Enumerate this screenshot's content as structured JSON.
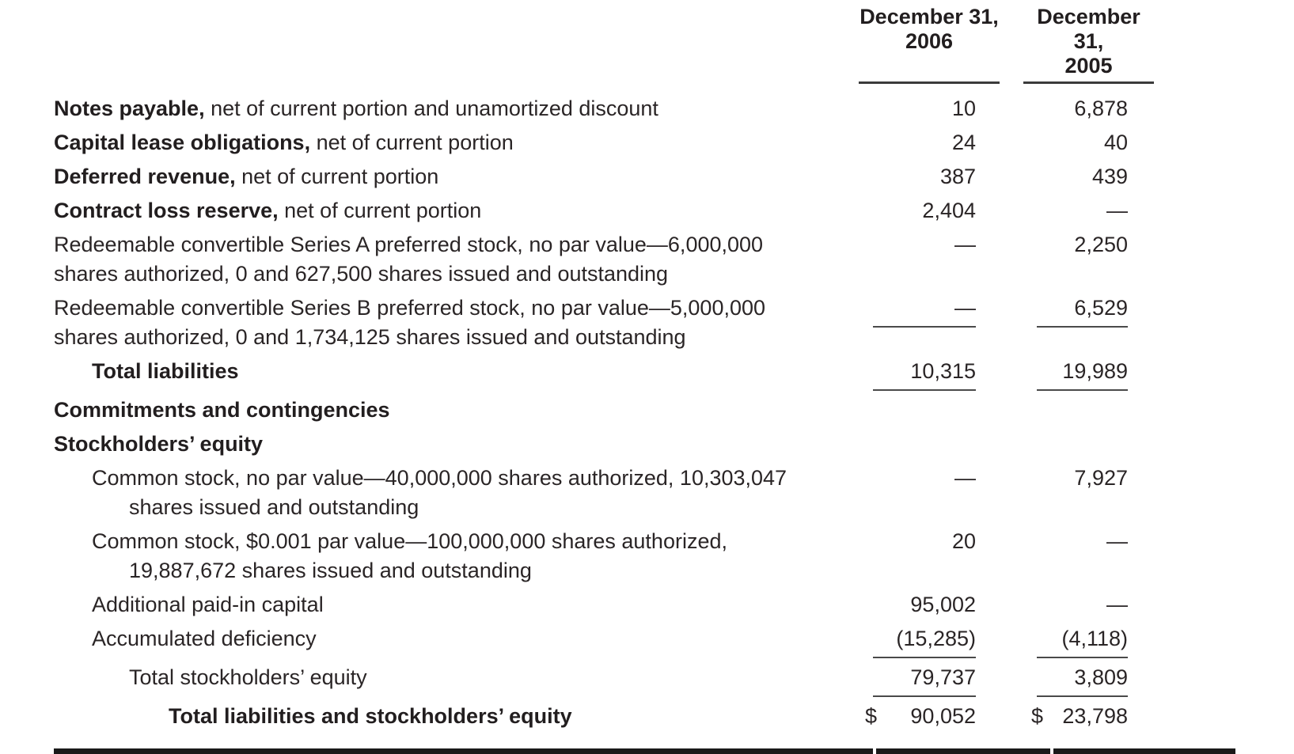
{
  "table": {
    "col_headers": [
      {
        "line1": "December 31,",
        "line2": "2006"
      },
      {
        "line1": "December 31,",
        "line2": "2005"
      }
    ],
    "rows": [
      {
        "bold_prefix": "Notes payable,",
        "text": " net of current portion and unamortized discount",
        "indent": 0,
        "v1": "10",
        "v2": "6,878"
      },
      {
        "bold_prefix": "Capital lease obligations,",
        "text": " net of current portion",
        "indent": 0,
        "v1": "24",
        "v2": "40"
      },
      {
        "bold_prefix": "Deferred revenue,",
        "text": " net of current portion",
        "indent": 0,
        "v1": "387",
        "v2": "439"
      },
      {
        "bold_prefix": "Contract loss reserve,",
        "text": " net of current portion",
        "indent": 0,
        "v1": "2,404",
        "v2": "—"
      },
      {
        "text": "Redeemable convertible Series A preferred stock, no par value—6,000,000",
        "text2": "shares authorized, 0 and 627,500 shares issued and outstanding",
        "indent": 0,
        "indent2": 0,
        "v1": "—",
        "v2": "2,250"
      },
      {
        "text": "Redeemable convertible Series B preferred stock, no par value—5,000,000",
        "text2": "shares authorized, 0 and 1,734,125 shares issued and outstanding",
        "indent": 0,
        "indent2": 0,
        "v1": "—",
        "v2": "6,529",
        "rule": true
      },
      {
        "text": "Total liabilities",
        "bold": true,
        "indent": 1,
        "v1": "10,315",
        "v2": "19,989",
        "rule": true
      },
      {
        "text": "Commitments and contingencies",
        "bold": true,
        "indent": 0
      },
      {
        "text": "Stockholders’ equity",
        "bold": true,
        "indent": 0
      },
      {
        "text": "Common stock, no par value—40,000,000 shares authorized, 10,303,047",
        "text2": "shares issued and outstanding",
        "indent": 1,
        "indent2": 2,
        "v1": "—",
        "v2": "7,927"
      },
      {
        "text": "Common stock, $0.001 par value—100,000,000 shares authorized,",
        "text2": "19,887,672 shares issued and outstanding",
        "indent": 1,
        "indent2": 2,
        "v1": "20",
        "v2": "—"
      },
      {
        "text": "Additional paid-in capital",
        "indent": 1,
        "v1": "95,002",
        "v2": "—"
      },
      {
        "text": "Accumulated deficiency",
        "indent": 1,
        "v1": "(15,285)",
        "v2": "(4,118)",
        "rule": true
      },
      {
        "text": "Total stockholders’ equity",
        "indent": 2,
        "v1": "79,737",
        "v2": "3,809",
        "rule": true
      },
      {
        "text": "Total liabilities and stockholders’ equity",
        "bold": true,
        "indent": 3,
        "cur": "$",
        "v1": "90,052",
        "v2": "23,798"
      }
    ]
  }
}
